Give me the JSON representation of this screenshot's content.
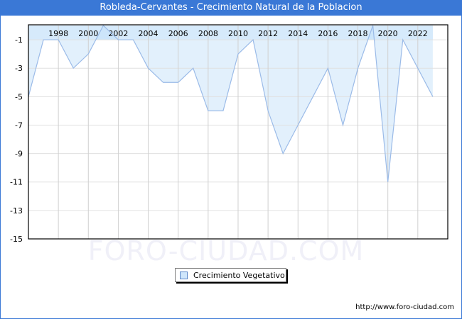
{
  "header": {
    "title": "Robleda-Cervantes - Crecimiento Natural de la Poblacion"
  },
  "legend": {
    "label": "Crecimiento Vegetativo",
    "swatch_color": "#cfe6fb"
  },
  "watermark": "FORO-CIUDAD.COM",
  "footer": {
    "url": "http://www.foro-ciudad.com"
  },
  "colors": {
    "title_bar": "#3a78d6",
    "line": "#9bbbe8",
    "fill": "#e2f0fc",
    "band": "#cce5fa",
    "grid": "#d0d0d0"
  },
  "chart_data": {
    "type": "area",
    "title": "Robleda-Cervantes - Crecimiento Natural de la Poblacion",
    "xlabel": "",
    "ylabel": "",
    "x": [
      1996,
      1997,
      1998,
      1999,
      2000,
      2001,
      2002,
      2003,
      2004,
      2005,
      2006,
      2007,
      2008,
      2009,
      2010,
      2011,
      2012,
      2013,
      2014,
      2015,
      2016,
      2017,
      2018,
      2019,
      2020,
      2021,
      2022,
      2023
    ],
    "series": [
      {
        "name": "Crecimiento Vegetativo",
        "values": [
          -5,
          -1,
          -1,
          -3,
          -2,
          0,
          -1,
          -1,
          -3,
          -4,
          -4,
          -3,
          -6,
          -6,
          -2,
          -1,
          -6,
          -9,
          -7,
          -5,
          -3,
          -7,
          -3,
          0,
          -11,
          -1,
          -3,
          -5
        ]
      }
    ],
    "x_tick_labels": [
      "1998",
      "2000",
      "2002",
      "2004",
      "2006",
      "2008",
      "2010",
      "2012",
      "2014",
      "2016",
      "2018",
      "2020",
      "2022"
    ],
    "y_tick_labels": [
      "-1",
      "-3",
      "-5",
      "-7",
      "-9",
      "-11",
      "-13",
      "-15"
    ],
    "ylim": [
      -15,
      0
    ],
    "grid": true,
    "legend_position": "bottom"
  }
}
